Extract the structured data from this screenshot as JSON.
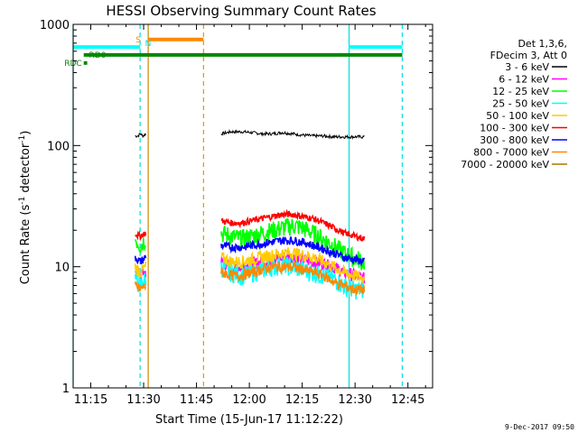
{
  "chart_data": {
    "type": "line",
    "title": "HESSI Observing Summary Count Rates",
    "xlabel": "Start Time (15-Jun-17 11:12:22)",
    "ylabel": "Count Rate (s",
    "ylabel_sup1": "-1",
    "ylabel_mid": " detector",
    "ylabel_sup2": "-1",
    "ylabel_end": ")",
    "yscale": "log",
    "xlim": [
      "11:10",
      "12:52"
    ],
    "ylim": [
      1,
      1000
    ],
    "xticks": [
      "11:15",
      "11:30",
      "11:45",
      "12:00",
      "12:15",
      "12:30",
      "12:45"
    ],
    "yticks": [
      {
        "label": "1",
        "value": 1
      },
      {
        "label": "10",
        "value": 10
      },
      {
        "label": "100",
        "value": 100
      },
      {
        "label": "1000",
        "value": 1000
      }
    ],
    "timestamp": "9-Dec-2017 09:50",
    "legend": {
      "position": "right",
      "header": [
        "Det 1,3,6,",
        "FDecim 3, Att 0"
      ],
      "entries": [
        {
          "label": "3 - 6 keV",
          "color": "#000000"
        },
        {
          "label": "6 - 12 keV",
          "color": "#ff00ff"
        },
        {
          "label": "12 - 25 keV",
          "color": "#00ff00"
        },
        {
          "label": "25 - 50 keV",
          "color": "#00ffff"
        },
        {
          "label": "50 - 100 keV",
          "color": "#ffcc00"
        },
        {
          "label": "100 - 300 keV",
          "color": "#ff0000"
        },
        {
          "label": "300 - 800 keV",
          "color": "#0000ff"
        },
        {
          "label": "800 - 7000 keV",
          "color": "#ff8800"
        },
        {
          "label": "7000 - 20000 keV",
          "color": "#aa7700"
        }
      ]
    },
    "vertical_markers": [
      {
        "time": "11:10",
        "color": "#00dddd",
        "style": "solid"
      },
      {
        "time": "11:29",
        "color": "#00dddd",
        "style": "dashed"
      },
      {
        "time": "11:31.3",
        "color": "#cc8800",
        "style": "solid"
      },
      {
        "time": "11:47",
        "color": "#ff8800",
        "style": "dashed"
      },
      {
        "time": "12:28.3",
        "color": "#00dddd",
        "style": "solid"
      },
      {
        "time": "12:43.4",
        "color": "#00dddd",
        "style": "dashed"
      }
    ],
    "status_bars": [
      {
        "label": "",
        "color": "#00ffff",
        "ranges": [
          [
            "11:10",
            "11:29"
          ],
          [
            "12:28.3",
            "12:43.4"
          ]
        ],
        "value": 650
      },
      {
        "label": "S",
        "color": "#ff8800",
        "ranges": [
          [
            "11:31.3",
            "11:47"
          ]
        ],
        "value": 750
      },
      {
        "label": "N",
        "color": "#00dddd",
        "ranges": [],
        "value": 700
      },
      {
        "label": "RD0",
        "color": "#008800",
        "ranges": [
          [
            "11:13",
            "12:43.4"
          ]
        ],
        "value": 560
      },
      {
        "label": "RDC",
        "color": "#008800",
        "ranges": [
          [
            "11:13",
            "11:14"
          ]
        ],
        "value": 480
      }
    ],
    "series": [
      {
        "name": "3 - 6 keV",
        "color": "#000000",
        "segments": [
          {
            "start": "11:27.6",
            "end": "11:30.6",
            "values": [
              120,
              120,
              125,
              120,
              125
            ]
          },
          {
            "start": "11:52",
            "end": "12:32.6",
            "values": [
              125,
              130,
              130,
              128,
              125,
              125,
              128,
              125,
              122,
              120,
              120,
              118,
              118,
              118,
              118
            ]
          }
        ]
      },
      {
        "name": "6 - 12 keV",
        "color": "#ff00ff",
        "segments": [
          {
            "start": "11:27.6",
            "end": "11:30.6",
            "values": [
              9.5,
              9,
              8.5,
              9,
              9
            ]
          },
          {
            "start": "11:52",
            "end": "12:32.6",
            "values": [
              11,
              10,
              10,
              10.5,
              11,
              11.5,
              12,
              12,
              11.5,
              11,
              10.5,
              10,
              9,
              8.5,
              8
            ]
          }
        ]
      },
      {
        "name": "12 - 25 keV",
        "color": "#00ff00",
        "segments": [
          {
            "start": "11:27.6",
            "end": "11:30.6",
            "values": [
              17,
              16,
              15,
              16,
              17
            ]
          },
          {
            "start": "11:52",
            "end": "12:32.6",
            "values": [
              19,
              18,
              17,
              18,
              19,
              20,
              21,
              22,
              21,
              19,
              17,
              15,
              13,
              12,
              11
            ]
          }
        ]
      },
      {
        "name": "25 - 50 keV",
        "color": "#00ffff",
        "segments": [
          {
            "start": "11:27.6",
            "end": "11:30.6",
            "values": [
              8,
              7.5,
              7,
              7.5,
              8
            ]
          },
          {
            "start": "11:52",
            "end": "12:32.6",
            "values": [
              10,
              9,
              8.5,
              9,
              9.5,
              10,
              10.5,
              10,
              9.5,
              9,
              8.5,
              8,
              7,
              6.5,
              6.5
            ]
          }
        ]
      },
      {
        "name": "50 - 100 keV",
        "color": "#ffcc00",
        "segments": [
          {
            "start": "11:27.6",
            "end": "11:30.6",
            "values": [
              10,
              9.5,
              9,
              9.5,
              10
            ]
          },
          {
            "start": "11:52",
            "end": "12:32.6",
            "values": [
              12,
              11,
              11,
              11.5,
              12,
              12.5,
              13,
              13,
              12.5,
              12,
              11,
              10,
              9,
              8.5,
              8
            ]
          }
        ]
      },
      {
        "name": "100 - 300 keV",
        "color": "#ff0000",
        "segments": [
          {
            "start": "11:27.6",
            "end": "11:30.6",
            "values": [
              19,
              18,
              18,
              18.5,
              19
            ]
          },
          {
            "start": "11:52",
            "end": "12:32.6",
            "values": [
              24,
              23,
              23,
              24,
              25,
              26,
              27,
              27,
              26,
              25,
              23,
              21,
              19,
              18,
              17
            ]
          }
        ]
      },
      {
        "name": "300 - 800 keV",
        "color": "#0000ff",
        "segments": [
          {
            "start": "11:27.6",
            "end": "11:30.6",
            "values": [
              12,
              11.5,
              11,
              11.5,
              12
            ]
          },
          {
            "start": "11:52",
            "end": "12:32.6",
            "values": [
              15,
              14.5,
              14.5,
              15,
              15.5,
              16,
              16.5,
              16.5,
              16,
              15,
              14,
              13,
              12,
              11.5,
              11
            ]
          }
        ]
      },
      {
        "name": "800 - 7000 keV",
        "color": "#ff8800",
        "segments": [
          {
            "start": "11:27.6",
            "end": "11:30.6",
            "values": [
              7,
              6.8,
              6.5,
              6.8,
              7
            ]
          },
          {
            "start": "11:52",
            "end": "12:32.6",
            "values": [
              9,
              8.5,
              8.5,
              9,
              9.5,
              10,
              10,
              10,
              9.5,
              9,
              8.5,
              7.5,
              7,
              6.5,
              6.5
            ]
          }
        ]
      },
      {
        "name": "7000 - 20000 keV",
        "color": "#aa7700",
        "segments": []
      }
    ]
  }
}
